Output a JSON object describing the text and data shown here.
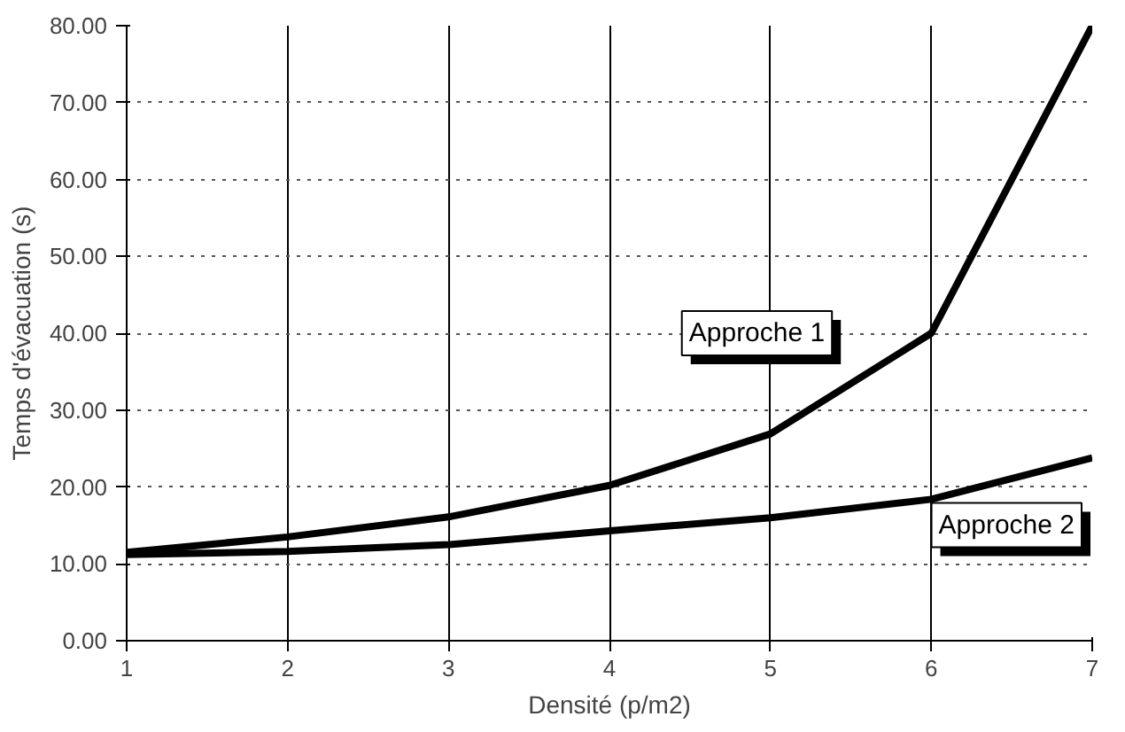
{
  "chart_data": {
    "type": "line",
    "xlabel": "Densité (p/m2)",
    "ylabel": "Temps d'évacuation (s)",
    "x": [
      1,
      2,
      3,
      4,
      5,
      6,
      7
    ],
    "series": [
      {
        "name": "Approche 1",
        "color": "#000000",
        "values": [
          11.5,
          13.5,
          16.1,
          20.2,
          26.9,
          40.0,
          80.0
        ]
      },
      {
        "name": "Approche 2",
        "color": "#000000",
        "values": [
          11.2,
          11.6,
          12.5,
          14.3,
          16.0,
          18.4,
          23.8
        ]
      }
    ],
    "xlim": [
      1,
      7
    ],
    "xticks": [
      1,
      2,
      3,
      4,
      5,
      6,
      7
    ],
    "ylim": [
      0,
      80
    ],
    "yticks": [
      {
        "value": 0,
        "label": "0.00"
      },
      {
        "value": 10,
        "label": "10.00"
      },
      {
        "value": 20,
        "label": "20.00"
      },
      {
        "value": 30,
        "label": "30.00"
      },
      {
        "value": 40,
        "label": "40.00"
      },
      {
        "value": 50,
        "label": "50.00"
      },
      {
        "value": 60,
        "label": "60.00"
      },
      {
        "value": 70,
        "label": "70.00"
      },
      {
        "value": 80,
        "label": "80.00"
      }
    ],
    "grid": true,
    "legend": false,
    "marker": "none",
    "line_style": "solid"
  }
}
